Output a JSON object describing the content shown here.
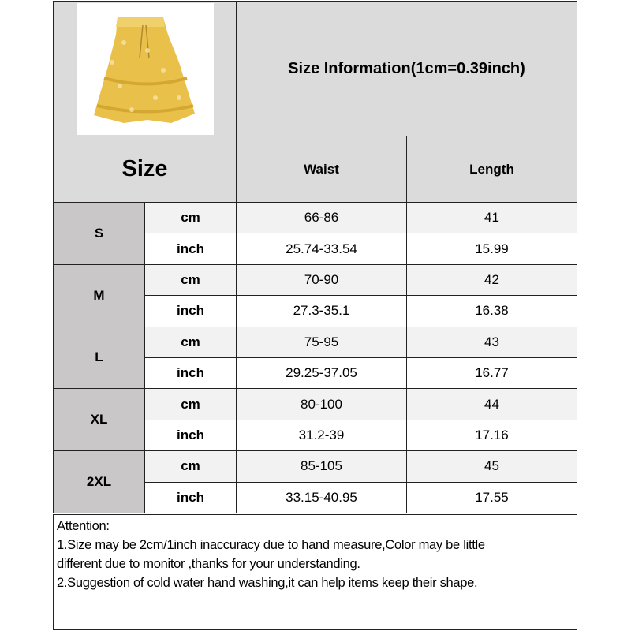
{
  "title": "Size Information(1cm=0.39inch)",
  "size_header": "Size",
  "columns": [
    "Waist",
    "Length"
  ],
  "product_image": "yellow-floral-skirt",
  "colors": {
    "header_bg": "#dcdbdb",
    "size_bg": "#c9c7c7",
    "cm_row_bg": "#f2f2f2",
    "inch_row_bg": "#ffffff"
  },
  "rows": [
    {
      "size": "S",
      "cm": {
        "unit": "cm",
        "waist": "66-86",
        "length": "41"
      },
      "inch": {
        "unit": "inch",
        "waist": "25.74-33.54",
        "length": "15.99"
      }
    },
    {
      "size": "M",
      "cm": {
        "unit": "cm",
        "waist": "70-90",
        "length": "42"
      },
      "inch": {
        "unit": "inch",
        "waist": "27.3-35.1",
        "length": "16.38"
      }
    },
    {
      "size": "L",
      "cm": {
        "unit": "cm",
        "waist": "75-95",
        "length": "43"
      },
      "inch": {
        "unit": "inch",
        "waist": "29.25-37.05",
        "length": "16.77"
      }
    },
    {
      "size": "XL",
      "cm": {
        "unit": "cm",
        "waist": "80-100",
        "length": "44"
      },
      "inch": {
        "unit": "inch",
        "waist": "31.2-39",
        "length": "17.16"
      }
    },
    {
      "size": "2XL",
      "cm": {
        "unit": "cm",
        "waist": "85-105",
        "length": "45"
      },
      "inch": {
        "unit": "inch",
        "waist": "33.15-40.95",
        "length": "17.55"
      }
    }
  ],
  "attention": {
    "heading": "Attention:",
    "lines": [
      "1.Size may be 2cm/1inch inaccuracy due to hand measure,Color may be little",
      "different due to monitor ,thanks for your understanding.",
      "2.Suggestion of cold water hand washing,it can help items keep their shape."
    ]
  }
}
